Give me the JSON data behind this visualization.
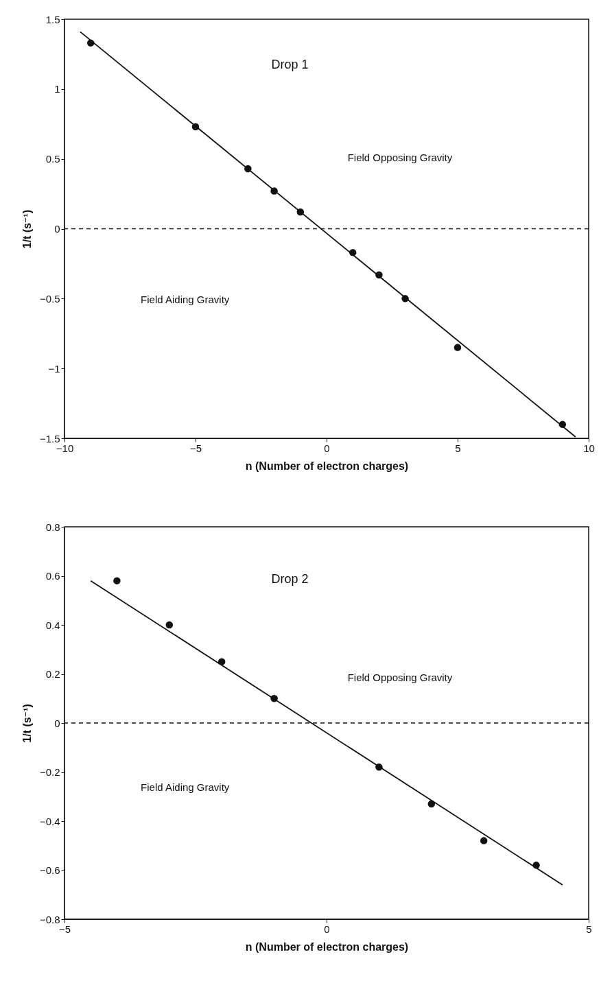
{
  "chart_data": [
    {
      "type": "scatter",
      "title": "Drop 1",
      "xlabel": "n (Number of electron charges)",
      "ylabel": "1/t (s⁻¹)",
      "x": [
        -9,
        -5,
        -3,
        -2,
        -1,
        1,
        2,
        3,
        5,
        9
      ],
      "series": [
        {
          "color": "#111111",
          "marker": "circle",
          "values": [
            1.33,
            0.73,
            0.43,
            0.27,
            0.12,
            -0.17,
            -0.33,
            -0.5,
            -0.85,
            -1.4
          ]
        },
        {
          "type": "line",
          "color": "#111111",
          "x": [
            -9.4,
            9.5
          ],
          "values": [
            1.41,
            -1.49
          ]
        }
      ],
      "xlim": [
        -10,
        10
      ],
      "xticks": [
        -10,
        -5,
        0,
        5,
        10
      ],
      "ylim": [
        -1.5,
        1.5
      ],
      "yticks": [
        -1.5,
        -1,
        -0.5,
        0,
        0.5,
        1,
        1.5
      ],
      "ref_lines": [
        {
          "axis": "y",
          "value": 0,
          "line_style": "dashed",
          "color": "#111111"
        }
      ],
      "annotations": [
        "Field Opposing Gravity",
        "Field Aiding Gravity"
      ]
    },
    {
      "type": "scatter",
      "title": "Drop 2",
      "xlabel": "n (Number of electron charges)",
      "ylabel": "1/t (s⁻¹)",
      "x": [
        -4,
        -3,
        -2,
        -1,
        1,
        2,
        3,
        4
      ],
      "series": [
        {
          "color": "#111111",
          "marker": "circle",
          "values": [
            0.58,
            0.4,
            0.25,
            0.1,
            -0.18,
            -0.33,
            -0.48,
            -0.58
          ]
        },
        {
          "type": "line",
          "color": "#111111",
          "x": [
            -4.5,
            4.5
          ],
          "values": [
            0.58,
            -0.66
          ]
        }
      ],
      "xlim": [
        -5,
        5
      ],
      "xticks": [
        -5,
        0,
        5
      ],
      "ylim": [
        -0.8,
        0.8
      ],
      "yticks": [
        -0.8,
        -0.6,
        -0.4,
        -0.2,
        0,
        0.2,
        0.4,
        0.6,
        0.8
      ],
      "ref_lines": [
        {
          "axis": "y",
          "value": 0,
          "line_style": "dashed",
          "color": "#111111"
        }
      ],
      "annotations": [
        "Field Opposing Gravity",
        "Field Aiding Gravity"
      ]
    }
  ]
}
